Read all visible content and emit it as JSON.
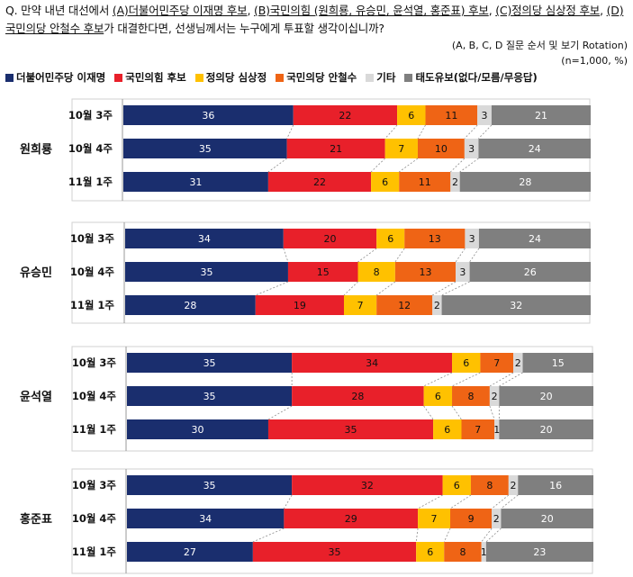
{
  "question": {
    "prefix": "Q. 만약 내년 대선에서 ",
    "a": "(A)더불어민주당 이재명 후보",
    "sep1": ", ",
    "b": "(B)국민의힘 (원희룡, 유승민, 윤석열, 홍준표) 후보",
    "sep2": ", ",
    "c": "(C)정의당 심상정 후보",
    "sep3": ", ",
    "d": "(D)국민의당 안철수 후보",
    "suffix": "가 대결한다면, 선생님께서는 누구에게 투표할 생각이십니까?"
  },
  "rotation_note": "(A, B, C, D 질문 순서 및 보기 Rotation)",
  "sample_note": "(n=1,000, %)",
  "chart_data": {
    "type": "bar",
    "orientation": "horizontal-stacked-100",
    "series": [
      {
        "name": "더불어민주당 이재명",
        "color": "#1a2e6e"
      },
      {
        "name": "국민의힘 후보",
        "color": "#e8202a"
      },
      {
        "name": "정의당 심상정",
        "color": "#ffc100"
      },
      {
        "name": "국민의당 안철수",
        "color": "#ef6415"
      },
      {
        "name": "기타",
        "color": "#d9d9d9"
      },
      {
        "name": "태도유보(없다/모름/무응답)",
        "color": "#7f7f7f"
      }
    ],
    "groups": [
      {
        "name": "원희룡",
        "rows": [
          {
            "label": "10월 3주",
            "values": [
              36,
              22,
              6,
              11,
              3,
              21
            ]
          },
          {
            "label": "10월 4주",
            "values": [
              35,
              21,
              7,
              10,
              3,
              24
            ]
          },
          {
            "label": "11월 1주",
            "values": [
              31,
              22,
              6,
              11,
              2,
              28
            ]
          }
        ]
      },
      {
        "name": "유승민",
        "rows": [
          {
            "label": "10월 3주",
            "values": [
              34,
              20,
              6,
              13,
              3,
              24
            ]
          },
          {
            "label": "10월 4주",
            "values": [
              35,
              15,
              8,
              13,
              3,
              26
            ]
          },
          {
            "label": "11월 1주",
            "values": [
              28,
              19,
              7,
              12,
              2,
              32
            ]
          }
        ]
      },
      {
        "name": "윤석열",
        "rows": [
          {
            "label": "10월 3주",
            "values": [
              35,
              34,
              6,
              7,
              2,
              15
            ]
          },
          {
            "label": "10월 4주",
            "values": [
              35,
              28,
              6,
              8,
              2,
              20
            ]
          },
          {
            "label": "11월 1주",
            "values": [
              30,
              35,
              6,
              7,
              1,
              20
            ]
          }
        ]
      },
      {
        "name": "홍준표",
        "rows": [
          {
            "label": "10월 3주",
            "values": [
              35,
              32,
              6,
              8,
              2,
              16
            ]
          },
          {
            "label": "10월 4주",
            "values": [
              34,
              29,
              7,
              9,
              2,
              20
            ]
          },
          {
            "label": "11월 1주",
            "values": [
              27,
              35,
              6,
              8,
              1,
              23
            ]
          }
        ]
      }
    ],
    "legend_position": "top-left",
    "grid": false
  }
}
